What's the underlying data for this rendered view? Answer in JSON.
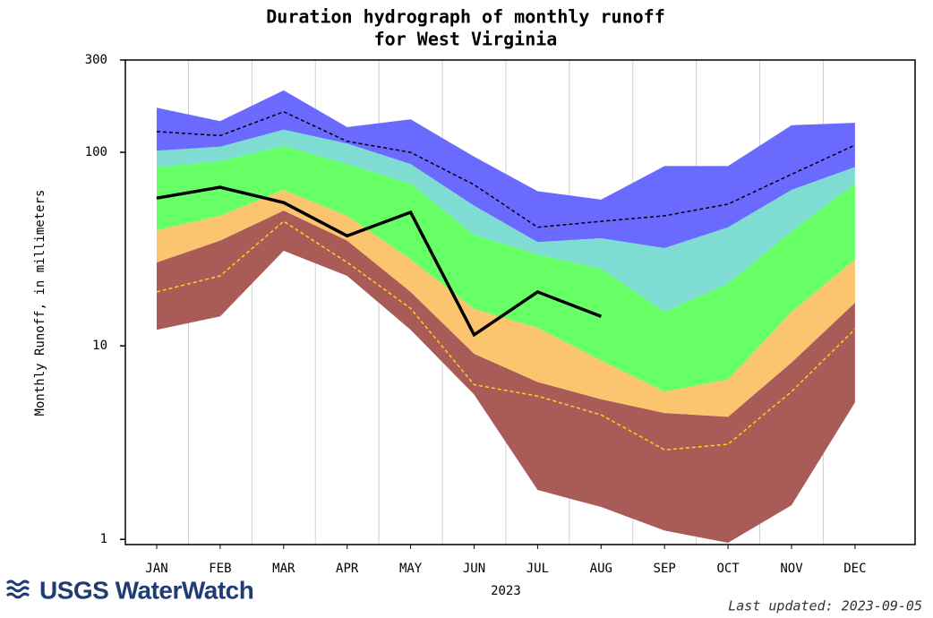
{
  "chart_data": {
    "type": "duration-hydrograph",
    "title": [
      "Duration hydrograph of monthly runoff",
      "for West Virginia"
    ],
    "y_label": "Monthly Runoff, in millimeters",
    "x_label": "2023",
    "categories": [
      "JAN",
      "FEB",
      "MAR",
      "APR",
      "MAY",
      "JUN",
      "JUL",
      "AUG",
      "SEP",
      "OCT",
      "NOV",
      "DEC"
    ],
    "log_scale": true,
    "ylim": [
      0.94,
      300
    ],
    "yticks": [
      1,
      10,
      100,
      300
    ],
    "boundaries": [
      [
        12.1,
        14.2,
        31,
        23,
        12.1,
        5.6,
        1.8,
        1.47,
        1.11,
        0.96,
        1.5,
        5.1
      ],
      [
        27,
        35,
        50,
        35,
        19,
        9.1,
        6.5,
        5.3,
        4.5,
        4.3,
        8.2,
        16.7
      ],
      [
        39.6,
        47,
        64,
        47,
        28,
        15.5,
        12.4,
        8.4,
        5.8,
        6.7,
        15,
        28
      ],
      [
        84,
        90,
        108,
        87,
        69,
        37.5,
        29.7,
        25,
        15,
        21,
        39,
        69
      ],
      [
        102,
        107,
        131,
        111,
        87,
        53,
        34.4,
        36,
        32,
        41,
        64,
        84
      ],
      [
        170,
        145,
        209,
        135,
        148,
        95,
        63,
        57,
        85,
        85,
        138,
        142
      ]
    ],
    "band_colors": [
      "#a95b58",
      "#fbc46e",
      "#66ff66",
      "#7fdcd2",
      "#6a6aff"
    ],
    "lines": [
      {
        "color": "#000000",
        "dashed": true,
        "width": 1.5,
        "values": [
          128,
          122,
          162,
          114,
          100,
          68,
          41,
          44,
          47,
          54,
          77,
          109
        ]
      },
      {
        "color": "#ffd21a",
        "dashed": true,
        "width": 1.5,
        "values": [
          19,
          23,
          44,
          27,
          15.6,
          6.3,
          5.5,
          4.4,
          2.9,
          3.1,
          5.8,
          12.2
        ]
      },
      {
        "color": "#000000",
        "dashed": false,
        "width": 3.5,
        "values": [
          58,
          66,
          55,
          37,
          49,
          11.4,
          19,
          14.2,
          null,
          null,
          null,
          null
        ]
      }
    ],
    "logo": "USGS WaterWatch",
    "last_updated": "Last updated: 2023-09-05"
  }
}
